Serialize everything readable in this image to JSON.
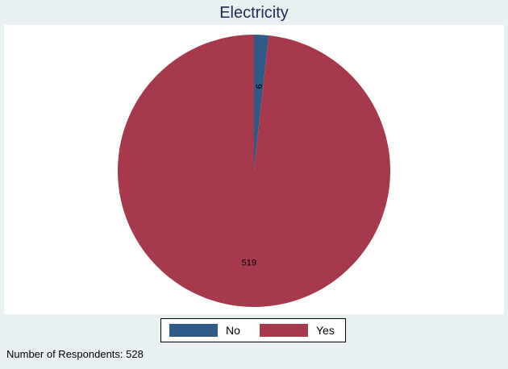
{
  "chart": {
    "title": "Electricity"
  },
  "chart_data": {
    "type": "pie",
    "title": "Electricity",
    "slices": [
      {
        "label": "No",
        "value": 9,
        "color": "#2e5a87"
      },
      {
        "label": "Yes",
        "value": 519,
        "color": "#a6394c"
      }
    ],
    "legend_placement": "bottom"
  },
  "legend": {
    "items": [
      {
        "label": "No",
        "color": "#2e5a87"
      },
      {
        "label": "Yes",
        "color": "#a6394c"
      }
    ]
  },
  "note": "Number of Respondents: 528"
}
